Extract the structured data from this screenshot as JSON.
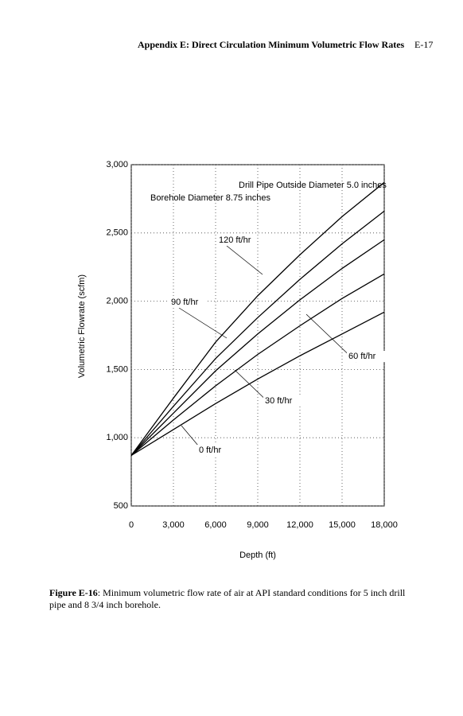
{
  "header": {
    "title": "Appendix E: Direct Circulation Minimum Volumetric Flow Rates",
    "page": "E-17"
  },
  "chart_data": {
    "type": "line",
    "x_label": "Depth (ft)",
    "y_label": "Volumetric Flowrate (scfm)",
    "annotations": [
      "Drill Pipe Outside Diameter 5.0 inches",
      "Borehole Diameter 8.75 inches"
    ],
    "x": [
      0,
      3000,
      6000,
      9000,
      12000,
      15000,
      18000
    ],
    "series": [
      {
        "name": "120 ft/hr",
        "color": "#000000",
        "values": [
          870,
          1290,
          1700,
          2040,
          2340,
          2620,
          2870
        ]
      },
      {
        "name": "90 ft/hr",
        "color": "#000000",
        "values": [
          870,
          1230,
          1580,
          1880,
          2160,
          2420,
          2660
        ]
      },
      {
        "name": "60 ft/hr",
        "color": "#000000",
        "values": [
          870,
          1180,
          1490,
          1760,
          2010,
          2240,
          2450
        ]
      },
      {
        "name": "30 ft/hr",
        "color": "#000000",
        "values": [
          870,
          1130,
          1380,
          1610,
          1820,
          2020,
          2200
        ]
      },
      {
        "name": "0 ft/hr",
        "color": "#000000",
        "values": [
          870,
          1060,
          1250,
          1430,
          1600,
          1760,
          1920
        ]
      }
    ],
    "xlim": [
      0,
      18000
    ],
    "xticks": [
      0,
      {
        "value": 3000,
        "label": "3,000"
      },
      {
        "value": 6000,
        "label": "6,000"
      },
      {
        "value": 9000,
        "label": "9,000"
      },
      {
        "value": 12000,
        "label": "12,000"
      },
      {
        "value": 15000,
        "label": "15,000"
      },
      {
        "value": 18000,
        "label": "18,000"
      }
    ],
    "ylim": [
      500,
      3000
    ],
    "yticks": [
      500,
      {
        "value": 1000,
        "label": "1,000"
      },
      {
        "value": 1500,
        "label": "1,500"
      },
      {
        "value": 2000,
        "label": "2,000"
      },
      {
        "value": 2500,
        "label": "2,500"
      },
      {
        "value": 3000,
        "label": "3,000"
      }
    ],
    "grid": true
  },
  "caption": {
    "label": "Figure E-16",
    "text": ": Minimum volumetric flow rate of air at API standard conditions for 5 inch drill pipe and 8 3/4 inch borehole."
  }
}
